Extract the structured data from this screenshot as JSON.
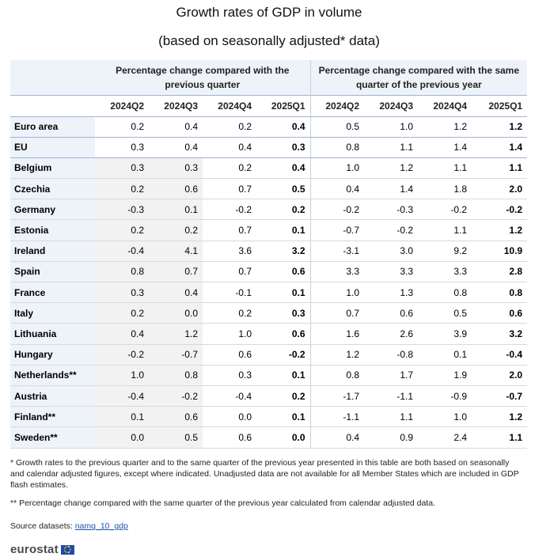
{
  "title": "Growth rates of GDP in volume",
  "subtitle": "(based on seasonally adjusted* data)",
  "groups": [
    "Percentage change compared with the previous quarter",
    "Percentage change compared with the same quarter of the previous year"
  ],
  "quarters": [
    "2024Q2",
    "2024Q3",
    "2024Q4",
    "2025Q1",
    "2024Q2",
    "2024Q3",
    "2024Q4",
    "2025Q1"
  ],
  "rows": [
    {
      "country": "Euro area",
      "values": [
        "0.2",
        "0.4",
        "0.2",
        "0.4",
        "0.5",
        "1.0",
        "1.2",
        "1.2"
      ]
    },
    {
      "country": "EU",
      "values": [
        "0.3",
        "0.4",
        "0.4",
        "0.3",
        "0.8",
        "1.1",
        "1.4",
        "1.4"
      ]
    },
    {
      "country": "Belgium",
      "values": [
        "0.3",
        "0.3",
        "0.2",
        "0.4",
        "1.0",
        "1.2",
        "1.1",
        "1.1"
      ]
    },
    {
      "country": "Czechia",
      "values": [
        "0.2",
        "0.6",
        "0.7",
        "0.5",
        "0.4",
        "1.4",
        "1.8",
        "2.0"
      ]
    },
    {
      "country": "Germany",
      "values": [
        "-0.3",
        "0.1",
        "-0.2",
        "0.2",
        "-0.2",
        "-0.3",
        "-0.2",
        "-0.2"
      ]
    },
    {
      "country": "Estonia",
      "values": [
        "0.2",
        "0.2",
        "0.7",
        "0.1",
        "-0.7",
        "-0.2",
        "1.1",
        "1.2"
      ]
    },
    {
      "country": "Ireland",
      "values": [
        "-0.4",
        "4.1",
        "3.6",
        "3.2",
        "-3.1",
        "3.0",
        "9.2",
        "10.9"
      ]
    },
    {
      "country": "Spain",
      "values": [
        "0.8",
        "0.7",
        "0.7",
        "0.6",
        "3.3",
        "3.3",
        "3.3",
        "2.8"
      ]
    },
    {
      "country": "France",
      "values": [
        "0.3",
        "0.4",
        "-0.1",
        "0.1",
        "1.0",
        "1.3",
        "0.8",
        "0.8"
      ]
    },
    {
      "country": "Italy",
      "values": [
        "0.2",
        "0.0",
        "0.2",
        "0.3",
        "0.7",
        "0.6",
        "0.5",
        "0.6"
      ]
    },
    {
      "country": "Lithuania",
      "values": [
        "0.4",
        "1.2",
        "1.0",
        "0.6",
        "1.6",
        "2.6",
        "3.9",
        "3.2"
      ]
    },
    {
      "country": "Hungary",
      "values": [
        "-0.2",
        "-0.7",
        "0.6",
        "-0.2",
        "1.2",
        "-0.8",
        "0.1",
        "-0.4"
      ]
    },
    {
      "country": "Netherlands**",
      "values": [
        "1.0",
        "0.8",
        "0.3",
        "0.1",
        "0.8",
        "1.7",
        "1.9",
        "2.0"
      ]
    },
    {
      "country": "Austria",
      "values": [
        "-0.4",
        "-0.2",
        "-0.4",
        "0.2",
        "-1.7",
        "-1.1",
        "-0.9",
        "-0.7"
      ]
    },
    {
      "country": "Finland**",
      "values": [
        "0.1",
        "0.6",
        "0.0",
        "0.1",
        "-1.1",
        "1.1",
        "1.0",
        "1.2"
      ]
    },
    {
      "country": "Sweden**",
      "values": [
        "0.0",
        "0.5",
        "0.6",
        "0.0",
        "0.4",
        "0.9",
        "2.4",
        "1.1"
      ]
    }
  ],
  "notes": [
    "* Growth rates to the previous quarter and to the same quarter of the previous year presented in this table are both based on seasonally and calendar adjusted figures, except where indicated. Unadjusted data are not available for all Member States which are included in GDP flash estimates.",
    "** Percentage change compared with the same quarter of the previous year calculated from calendar adjusted data."
  ],
  "source_label": "Source datasets:",
  "source_link": "namq_10_gdp",
  "logo": "eurostat",
  "colors": {
    "header_bg": "#eef3fa",
    "shade_bg": "#f2f2f2",
    "link": "#1a57a6",
    "flag": "#1f4aa8"
  }
}
